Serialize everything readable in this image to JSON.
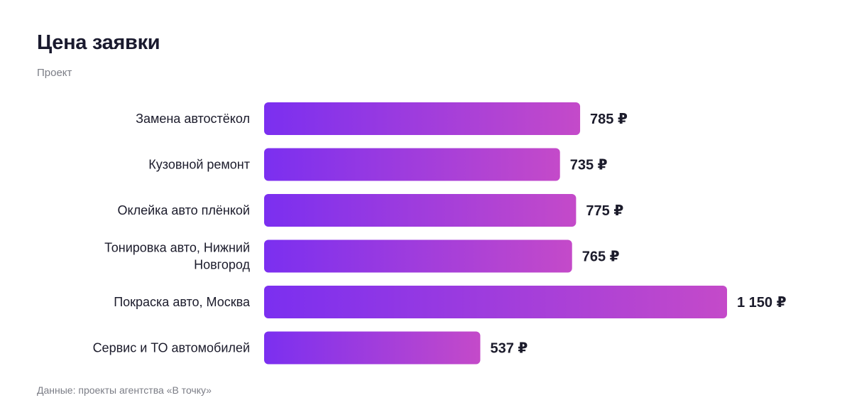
{
  "header": {
    "title": "Цена заявки",
    "subtitle": "Проект"
  },
  "footer": {
    "source": "Данные: проекты агентства «В точку»"
  },
  "colors": {
    "bar_gradient_start": "#7b2ff0",
    "bar_gradient_end": "#c44ac9",
    "text": "#1b1b2b",
    "muted_text": "#7b7d86"
  },
  "chart_data": {
    "type": "bar",
    "orientation": "horizontal",
    "title": "Цена заявки",
    "subtitle": "Проект",
    "unit": "₽",
    "categories": [
      "Замена автостёкол",
      "Кузовной ремонт",
      "Оклейка авто плёнкой",
      "Тонировка авто, Нижний Новгород",
      "Покраска авто, Москва",
      "Сервис и ТО автомобилей"
    ],
    "values": [
      785,
      735,
      775,
      765,
      1150,
      537
    ],
    "data_labels": [
      "785 ₽",
      "735 ₽",
      "775 ₽",
      "765 ₽",
      "1 150 ₽",
      "537 ₽"
    ],
    "grid": false,
    "legend": "none"
  }
}
